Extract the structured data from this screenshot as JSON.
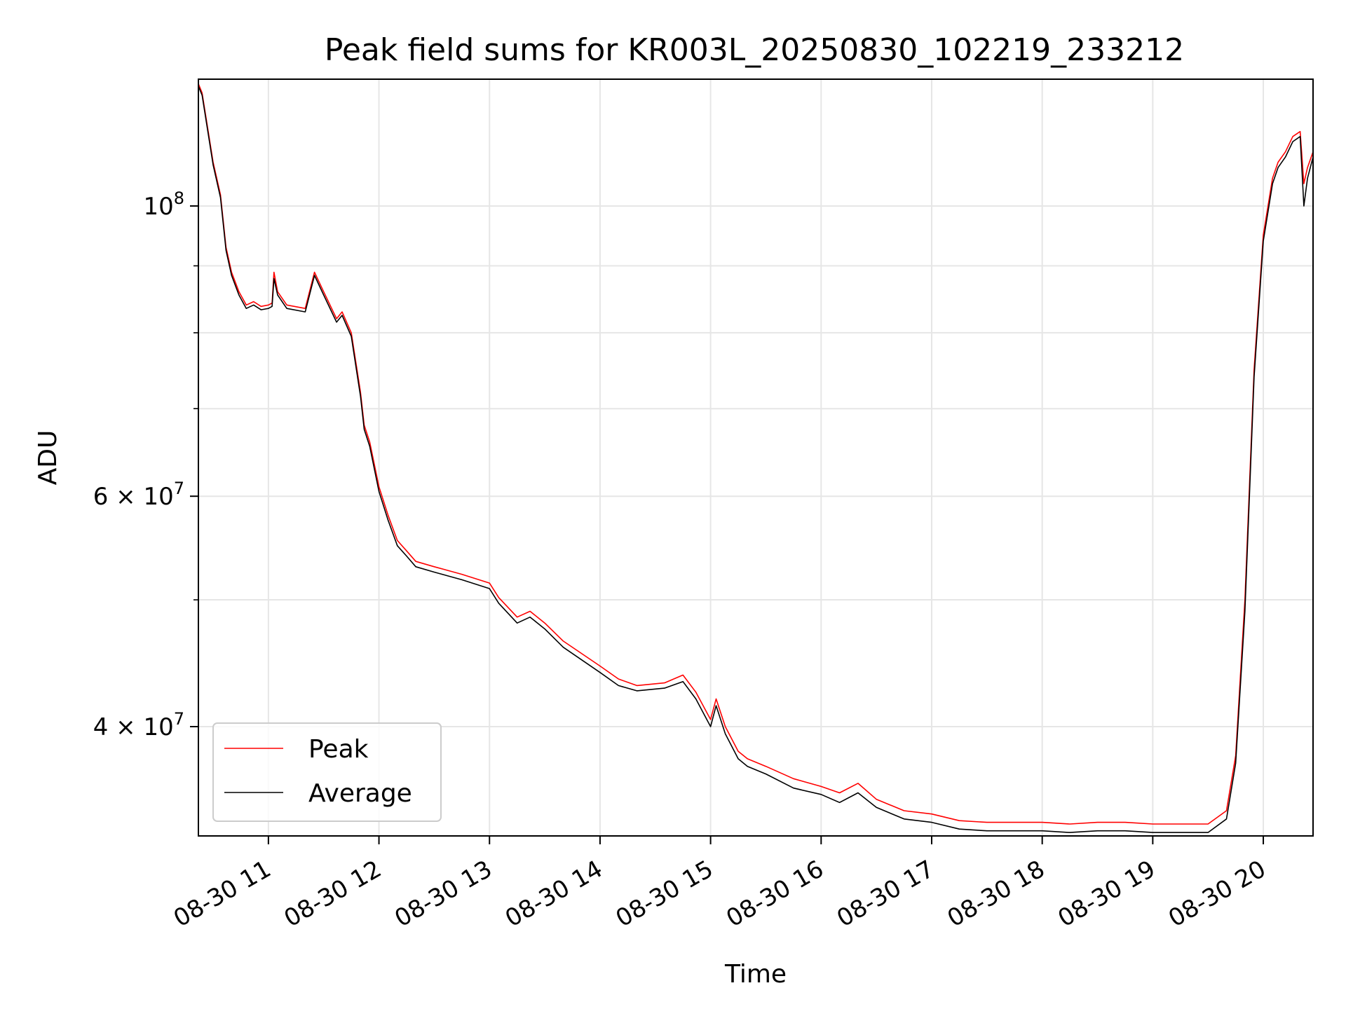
{
  "chart_data": {
    "type": "line",
    "title": "Peak field sums for KR003L_20250830_102219_233212",
    "xlabel": "Time",
    "ylabel": "ADU",
    "yscale": "log",
    "ylim": [
      33000000.0,
      125000000.0
    ],
    "xlim": [
      "2025-08-30 10:22",
      "2025-08-30 20:27"
    ],
    "grid": true,
    "legend_position": "lower-left",
    "x_ticks": [
      {
        "at": "2025-08-30 11:00",
        "label": "08-30 11"
      },
      {
        "at": "2025-08-30 12:00",
        "label": "08-30 12"
      },
      {
        "at": "2025-08-30 13:00",
        "label": "08-30 13"
      },
      {
        "at": "2025-08-30 14:00",
        "label": "08-30 14"
      },
      {
        "at": "2025-08-30 15:00",
        "label": "08-30 15"
      },
      {
        "at": "2025-08-30 16:00",
        "label": "08-30 16"
      },
      {
        "at": "2025-08-30 17:00",
        "label": "08-30 17"
      },
      {
        "at": "2025-08-30 18:00",
        "label": "08-30 18"
      },
      {
        "at": "2025-08-30 19:00",
        "label": "08-30 19"
      },
      {
        "at": "2025-08-30 20:00",
        "label": "08-30 20"
      }
    ],
    "y_major_ticks": [
      {
        "value": 100000000,
        "base": "10",
        "exp": "8"
      },
      {
        "value": 60000000,
        "base": "6 × 10",
        "exp": "7"
      },
      {
        "value": 40000000,
        "base": "4 × 10",
        "exp": "7"
      }
    ],
    "y_minor_ticks": [
      90000000,
      80000000,
      70000000,
      50000000
    ],
    "series": [
      {
        "name": "Peak",
        "color": "#ff0000",
        "x": [
          "2025-08-30 10:22",
          "2025-08-30 10:24",
          "2025-08-30 10:30",
          "2025-08-30 10:34",
          "2025-08-30 10:37",
          "2025-08-30 10:40",
          "2025-08-30 10:44",
          "2025-08-30 10:48",
          "2025-08-30 10:52",
          "2025-08-30 10:56",
          "2025-08-30 11:00",
          "2025-08-30 11:02",
          "2025-08-30 11:03",
          "2025-08-30 11:05",
          "2025-08-30 11:10",
          "2025-08-30 11:20",
          "2025-08-30 11:25",
          "2025-08-30 11:30",
          "2025-08-30 11:37",
          "2025-08-30 11:40",
          "2025-08-30 11:45",
          "2025-08-30 11:50",
          "2025-08-30 11:52",
          "2025-08-30 11:55",
          "2025-08-30 12:00",
          "2025-08-30 12:05",
          "2025-08-30 12:10",
          "2025-08-30 12:15",
          "2025-08-30 12:20",
          "2025-08-30 12:30",
          "2025-08-30 12:45",
          "2025-08-30 13:00",
          "2025-08-30 13:05",
          "2025-08-30 13:15",
          "2025-08-30 13:22",
          "2025-08-30 13:30",
          "2025-08-30 13:40",
          "2025-08-30 14:00",
          "2025-08-30 14:10",
          "2025-08-30 14:20",
          "2025-08-30 14:35",
          "2025-08-30 14:45",
          "2025-08-30 14:52",
          "2025-08-30 15:00",
          "2025-08-30 15:03",
          "2025-08-30 15:08",
          "2025-08-30 15:15",
          "2025-08-30 15:20",
          "2025-08-30 15:30",
          "2025-08-30 15:45",
          "2025-08-30 16:00",
          "2025-08-30 16:10",
          "2025-08-30 16:20",
          "2025-08-30 16:30",
          "2025-08-30 16:45",
          "2025-08-30 17:00",
          "2025-08-30 17:15",
          "2025-08-30 17:30",
          "2025-08-30 17:45",
          "2025-08-30 18:00",
          "2025-08-30 18:15",
          "2025-08-30 18:30",
          "2025-08-30 18:45",
          "2025-08-30 19:00",
          "2025-08-30 19:15",
          "2025-08-30 19:30",
          "2025-08-30 19:40",
          "2025-08-30 19:45",
          "2025-08-30 19:50",
          "2025-08-30 19:55",
          "2025-08-30 20:00",
          "2025-08-30 20:05",
          "2025-08-30 20:08",
          "2025-08-30 20:12",
          "2025-08-30 20:16",
          "2025-08-30 20:20",
          "2025-08-30 20:22",
          "2025-08-30 20:24",
          "2025-08-30 20:27"
        ],
        "values": [
          124000000,
          122000000,
          108000000,
          102000000,
          93000000,
          89000000,
          86000000,
          84000000,
          84500000,
          83800000,
          84000000,
          84300000,
          89000000,
          86000000,
          84000000,
          83500000,
          89000000,
          86000000,
          82000000,
          83000000,
          80000000,
          72000000,
          68000000,
          66000000,
          61000000,
          58000000,
          55500000,
          54500000,
          53500000,
          53000000,
          52300000,
          51500000,
          50200000,
          48500000,
          49000000,
          48000000,
          46500000,
          44500000,
          43500000,
          43000000,
          43200000,
          43800000,
          42500000,
          40500000,
          42000000,
          40000000,
          38300000,
          37800000,
          37300000,
          36500000,
          36000000,
          35600000,
          36200000,
          35200000,
          34500000,
          34300000,
          33900000,
          33800000,
          33800000,
          33800000,
          33700000,
          33800000,
          33800000,
          33700000,
          33700000,
          33700000,
          34500000,
          38000000,
          50000000,
          75000000,
          95000000,
          105000000,
          108000000,
          110000000,
          113000000,
          114000000,
          104000000,
          107000000,
          110000000
        ]
      },
      {
        "name": "Average",
        "color": "#000000",
        "x": [
          "2025-08-30 10:22",
          "2025-08-30 10:24",
          "2025-08-30 10:30",
          "2025-08-30 10:34",
          "2025-08-30 10:37",
          "2025-08-30 10:40",
          "2025-08-30 10:44",
          "2025-08-30 10:48",
          "2025-08-30 10:52",
          "2025-08-30 10:56",
          "2025-08-30 11:00",
          "2025-08-30 11:02",
          "2025-08-30 11:03",
          "2025-08-30 11:05",
          "2025-08-30 11:10",
          "2025-08-30 11:20",
          "2025-08-30 11:25",
          "2025-08-30 11:30",
          "2025-08-30 11:37",
          "2025-08-30 11:40",
          "2025-08-30 11:45",
          "2025-08-30 11:50",
          "2025-08-30 11:52",
          "2025-08-30 11:55",
          "2025-08-30 12:00",
          "2025-08-30 12:05",
          "2025-08-30 12:10",
          "2025-08-30 12:15",
          "2025-08-30 12:20",
          "2025-08-30 12:30",
          "2025-08-30 12:45",
          "2025-08-30 13:00",
          "2025-08-30 13:05",
          "2025-08-30 13:15",
          "2025-08-30 13:22",
          "2025-08-30 13:30",
          "2025-08-30 13:40",
          "2025-08-30 14:00",
          "2025-08-30 14:10",
          "2025-08-30 14:20",
          "2025-08-30 14:35",
          "2025-08-30 14:45",
          "2025-08-30 14:52",
          "2025-08-30 15:00",
          "2025-08-30 15:03",
          "2025-08-30 15:08",
          "2025-08-30 15:15",
          "2025-08-30 15:20",
          "2025-08-30 15:30",
          "2025-08-30 15:45",
          "2025-08-30 16:00",
          "2025-08-30 16:10",
          "2025-08-30 16:20",
          "2025-08-30 16:30",
          "2025-08-30 16:45",
          "2025-08-30 17:00",
          "2025-08-30 17:15",
          "2025-08-30 17:30",
          "2025-08-30 17:45",
          "2025-08-30 18:00",
          "2025-08-30 18:15",
          "2025-08-30 18:30",
          "2025-08-30 18:45",
          "2025-08-30 19:00",
          "2025-08-30 19:15",
          "2025-08-30 19:30",
          "2025-08-30 19:40",
          "2025-08-30 19:45",
          "2025-08-30 19:50",
          "2025-08-30 19:55",
          "2025-08-30 20:00",
          "2025-08-30 20:05",
          "2025-08-30 20:08",
          "2025-08-30 20:12",
          "2025-08-30 20:16",
          "2025-08-30 20:20",
          "2025-08-30 20:22",
          "2025-08-30 20:24",
          "2025-08-30 20:27"
        ],
        "values": [
          123500000,
          121500000,
          107500000,
          101500000,
          92500000,
          88500000,
          85500000,
          83500000,
          84000000,
          83300000,
          83500000,
          83800000,
          88000000,
          85500000,
          83500000,
          83000000,
          88500000,
          85500000,
          81500000,
          82500000,
          79500000,
          71500000,
          67500000,
          65500000,
          60500000,
          57500000,
          55000000,
          54000000,
          53000000,
          52500000,
          51800000,
          51000000,
          49700000,
          48000000,
          48500000,
          47500000,
          46000000,
          44000000,
          43000000,
          42600000,
          42800000,
          43300000,
          42000000,
          40000000,
          41500000,
          39500000,
          37800000,
          37300000,
          36800000,
          35900000,
          35500000,
          35000000,
          35600000,
          34700000,
          34000000,
          33800000,
          33400000,
          33300000,
          33300000,
          33300000,
          33200000,
          33300000,
          33300000,
          33200000,
          33200000,
          33200000,
          34000000,
          37500000,
          49000000,
          74000000,
          94000000,
          104000000,
          107000000,
          109000000,
          112000000,
          113000000,
          100000000,
          105000000,
          109000000
        ]
      }
    ]
  }
}
